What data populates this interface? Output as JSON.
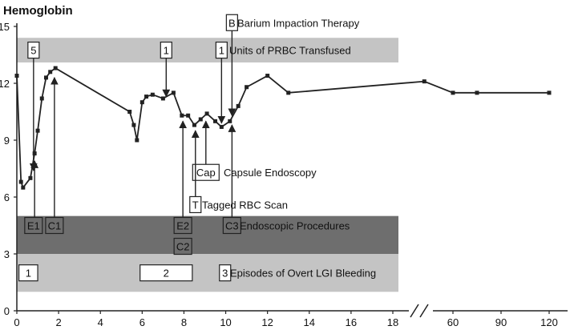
{
  "chart_data": {
    "type": "line",
    "title": "Hemoglobin",
    "ylim": [
      0,
      15
    ],
    "y_ticks": [
      0,
      3,
      6,
      9,
      12,
      15
    ],
    "x_ticks_primary": [
      0,
      2,
      4,
      6,
      8,
      10,
      12,
      14,
      16,
      18
    ],
    "x_ticks_secondary": [
      60,
      90,
      120
    ],
    "grid": false,
    "series": [
      {
        "values": [
          {
            "x": 0.0,
            "y": 12.4
          },
          {
            "x": 0.2,
            "y": 6.8
          },
          {
            "x": 0.3,
            "y": 6.5
          },
          {
            "x": 0.65,
            "y": 7.0
          },
          {
            "x": 0.85,
            "y": 8.3
          },
          {
            "x": 1.0,
            "y": 9.5
          },
          {
            "x": 1.2,
            "y": 11.2
          },
          {
            "x": 1.4,
            "y": 12.3
          },
          {
            "x": 1.6,
            "y": 12.6
          },
          {
            "x": 1.85,
            "y": 12.8
          },
          {
            "x": 5.4,
            "y": 10.5
          },
          {
            "x": 5.6,
            "y": 9.8
          },
          {
            "x": 5.75,
            "y": 9.0
          },
          {
            "x": 6.0,
            "y": 11.0
          },
          {
            "x": 6.2,
            "y": 11.3
          },
          {
            "x": 6.5,
            "y": 11.4
          },
          {
            "x": 7.0,
            "y": 11.2
          },
          {
            "x": 7.5,
            "y": 11.5
          },
          {
            "x": 7.9,
            "y": 10.3
          },
          {
            "x": 8.2,
            "y": 10.3
          },
          {
            "x": 8.5,
            "y": 9.8
          },
          {
            "x": 8.8,
            "y": 10.1
          },
          {
            "x": 9.1,
            "y": 10.4
          },
          {
            "x": 9.5,
            "y": 10.0
          },
          {
            "x": 9.8,
            "y": 9.7
          },
          {
            "x": 10.2,
            "y": 10.0
          },
          {
            "x": 10.6,
            "y": 10.8
          },
          {
            "x": 11.0,
            "y": 11.8
          },
          {
            "x": 12.0,
            "y": 12.4
          },
          {
            "x": 13.0,
            "y": 11.5
          },
          {
            "x": 40,
            "y": 12.1
          },
          {
            "x": 60,
            "y": 11.5
          },
          {
            "x": 75,
            "y": 11.5
          },
          {
            "x": 120,
            "y": 11.5
          }
        ]
      }
    ],
    "bands": [
      {
        "key": "transfused",
        "label": "Units of PRBC Transfused",
        "ylim": [
          13.1,
          14.4
        ],
        "color": "#c4c4c4"
      },
      {
        "key": "endoscopic",
        "label": "Endoscopic Procedures",
        "ylim": [
          3.0,
          5.0
        ],
        "color": "#6e6e6e"
      },
      {
        "key": "bleeding",
        "label": "Episodes of Overt LGI Bleeding",
        "ylim": [
          1.0,
          3.0
        ],
        "color": "#c4c4c4"
      }
    ],
    "markers": [
      {
        "key": "units-5",
        "text": "5",
        "x": 0.8,
        "y": 13.75,
        "arrow_to": [
          0.8,
          7.4
        ]
      },
      {
        "key": "units-1a",
        "text": "1",
        "x": 7.15,
        "y": 13.75,
        "arrow_to": [
          7.15,
          11.3
        ]
      },
      {
        "key": "units-1b",
        "text": "1",
        "x": 9.8,
        "y": 13.75,
        "arrow_to": [
          9.8,
          9.9
        ]
      },
      {
        "key": "e1",
        "text": "E1",
        "x": 0.8,
        "y": 4.5,
        "arrow_to": [
          0.85,
          7.9
        ]
      },
      {
        "key": "c1",
        "text": "C1",
        "x": 1.8,
        "y": 4.5,
        "arrow_to": [
          1.8,
          12.3
        ]
      },
      {
        "key": "e2",
        "text": "E2",
        "x": 7.95,
        "y": 4.5,
        "arrow_to": [
          7.95,
          10.0
        ]
      },
      {
        "key": "c2",
        "text": "C2",
        "x": 7.95,
        "y": 3.4,
        "arrow_to": null
      },
      {
        "key": "c3",
        "text": "C3",
        "x": 10.3,
        "y": 4.5,
        "arrow_to": [
          10.3,
          9.8
        ]
      },
      {
        "key": "b",
        "text": "B",
        "x": 10.3,
        "y": 15.2,
        "arrow_to": [
          10.3,
          10.3
        ]
      },
      {
        "key": "cap",
        "text": "Cap",
        "x": 9.05,
        "y": 7.3,
        "arrow_to": [
          9.05,
          10.0
        ]
      },
      {
        "key": "t",
        "text": "T",
        "x": 8.55,
        "y": 5.6,
        "arrow_to": [
          8.55,
          9.5
        ]
      }
    ],
    "bleeding_episodes": [
      {
        "label": "1",
        "x": [
          0.1,
          1.0
        ]
      },
      {
        "label": "2",
        "x": [
          5.9,
          8.4
        ]
      },
      {
        "label": "3",
        "x": [
          9.7,
          10.2
        ]
      }
    ],
    "legend_labels": {
      "barium": "Barium Impaction Therapy",
      "capsule": "Capsule Endoscopy",
      "tagged": "Tagged RBC Scan"
    }
  }
}
